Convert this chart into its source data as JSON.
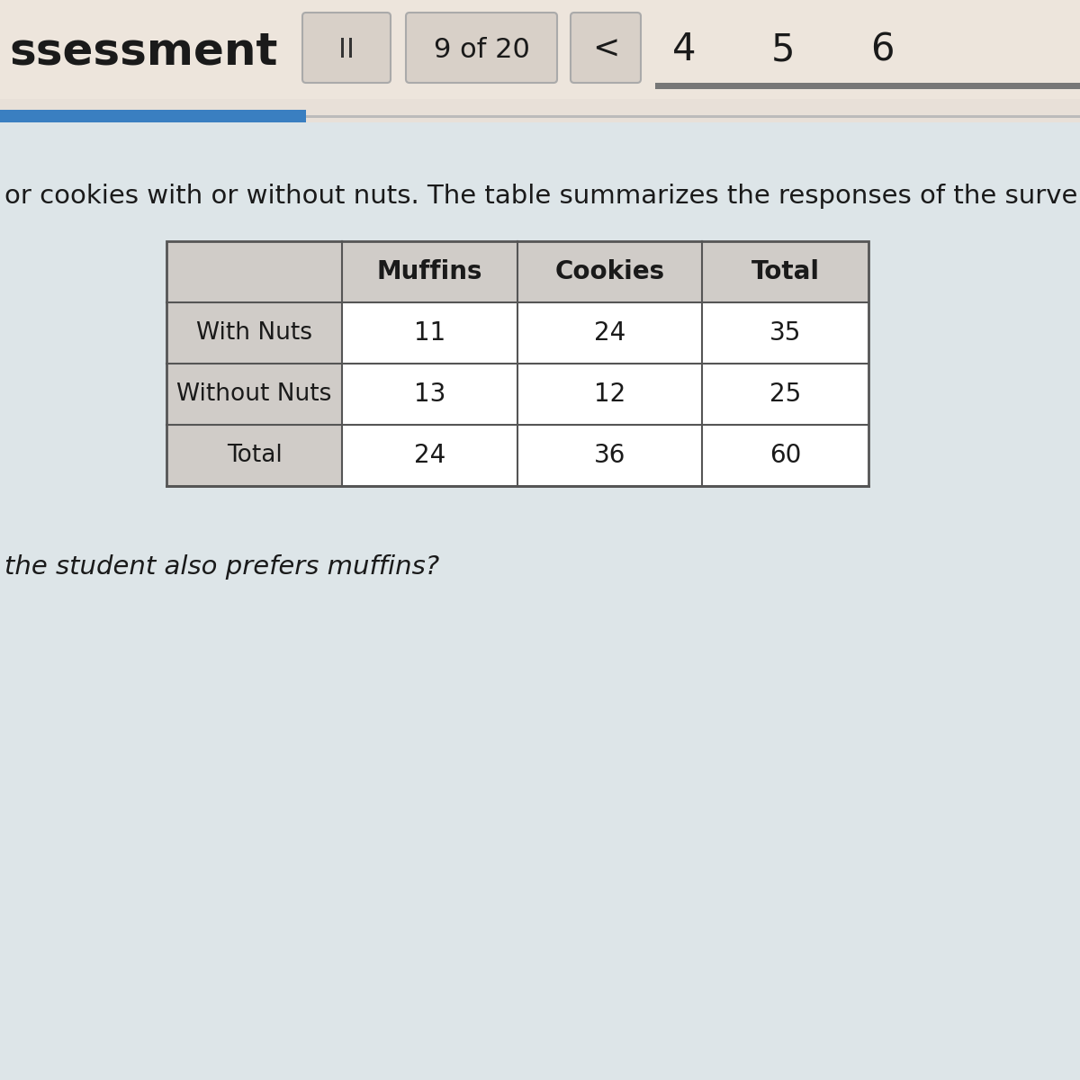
{
  "background_color": "#e8e0d8",
  "header_text_top": "ssessment",
  "nav_text": "9 of 20",
  "nav_numbers": [
    "4",
    "5",
    "6"
  ],
  "progress_bar_color": "#3a7fc1",
  "body_text_line1": "or cookies with or without nuts. The table summarizes the responses of the surve",
  "question_text": "the student also prefers muffins?",
  "table_col_headers": [
    "Muffins",
    "Cookies",
    "Total"
  ],
  "table_row_headers": [
    "With Nuts",
    "Without Nuts",
    "Total"
  ],
  "table_data": [
    [
      11,
      24,
      35
    ],
    [
      13,
      12,
      25
    ],
    [
      24,
      36,
      60
    ]
  ],
  "table_header_bg": "#d0ccc8",
  "table_row_header_bg": "#d0ccc8",
  "table_cell_bg": "#ffffff",
  "table_border_color": "#555555",
  "header_bg": "#ede5dc",
  "button_bg": "#d8d0c8",
  "button_border": "#aaaaaa",
  "body_bg": "#dde5e8"
}
